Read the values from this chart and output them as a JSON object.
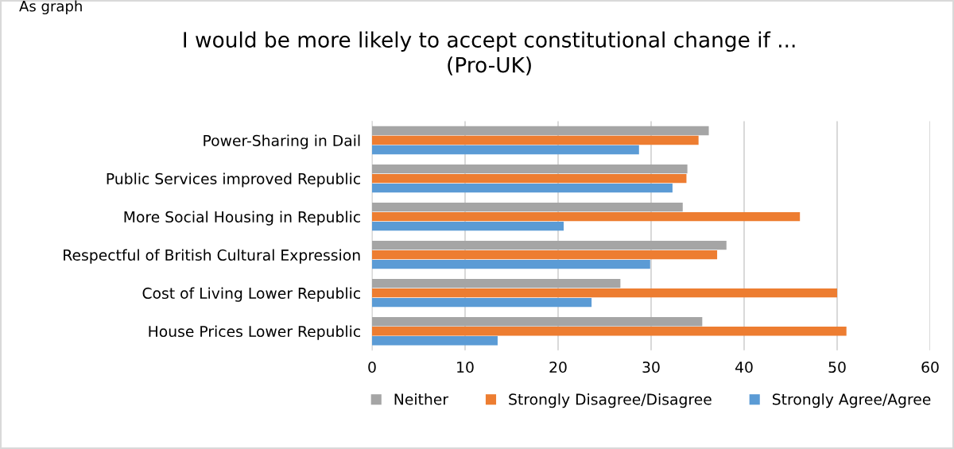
{
  "chart_data": {
    "type": "bar",
    "orientation": "horizontal",
    "title": "I would be more likely to accept constitutional change if ...\n(Pro-UK)",
    "categories": [
      "Power-Sharing in Dail",
      "Public Services improved Republic",
      "More Social Housing in Republic",
      "Respectful of British Cultural Expression",
      "Cost of Living Lower Republic",
      "House Prices Lower Republic"
    ],
    "series": [
      {
        "name": "Neither",
        "color": "#a5a5a5",
        "values": [
          36.2,
          33.9,
          33.4,
          38.1,
          26.7,
          35.5
        ]
      },
      {
        "name": "Strongly Disagree/Disagree",
        "color": "#ed7d31",
        "values": [
          35.1,
          33.8,
          46.0,
          37.1,
          50.0,
          51.0
        ]
      },
      {
        "name": "Strongly Agree/Agree",
        "color": "#5b9bd5",
        "values": [
          28.7,
          32.3,
          20.6,
          29.9,
          23.6,
          13.5
        ]
      }
    ],
    "xlim": [
      0,
      60
    ],
    "xticks": [
      0,
      10,
      20,
      30,
      40,
      50,
      60
    ],
    "grid": "x",
    "legend": "bottom",
    "annotations": [
      "As graph"
    ]
  }
}
